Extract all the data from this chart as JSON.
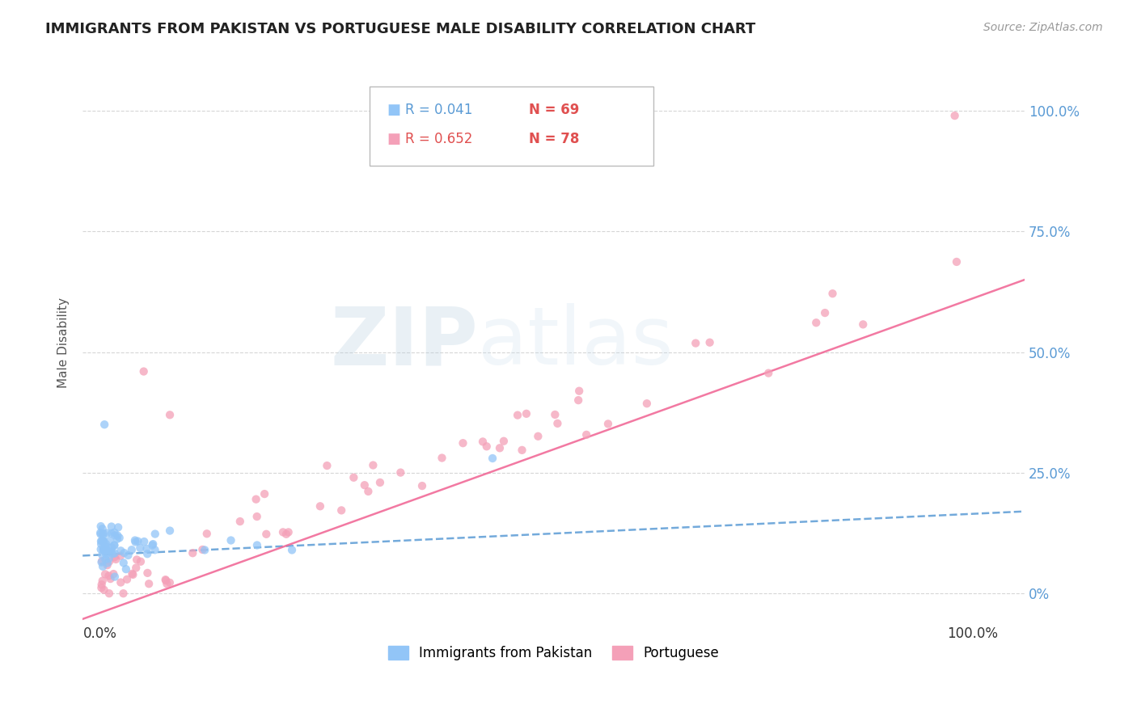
{
  "title": "IMMIGRANTS FROM PAKISTAN VS PORTUGUESE MALE DISABILITY CORRELATION CHART",
  "source_text": "Source: ZipAtlas.com",
  "ylabel": "Male Disability",
  "watermark_zip": "ZIP",
  "watermark_atlas": "atlas",
  "y_tick_labels_right": [
    "0%",
    "25.0%",
    "50.0%",
    "75.0%",
    "100.0%"
  ],
  "xlim": [
    -0.02,
    1.06
  ],
  "ylim": [
    -0.06,
    1.1
  ],
  "background_color": "#ffffff",
  "grid_color": "#cccccc",
  "blue_scatter_color": "#92c5f7",
  "pink_scatter_color": "#f4a0b8",
  "blue_line_color": "#5b9bd5",
  "pink_line_color": "#f06292",
  "right_axis_color": "#5b9bd5",
  "legend_R1": "R = 0.041",
  "legend_N1": "N = 69",
  "legend_R2": "R = 0.652",
  "legend_N2": "N = 78",
  "legend_R_color": "#5b9bd5",
  "legend_N_color": "#e05050",
  "legend_R2_color": "#e05050"
}
